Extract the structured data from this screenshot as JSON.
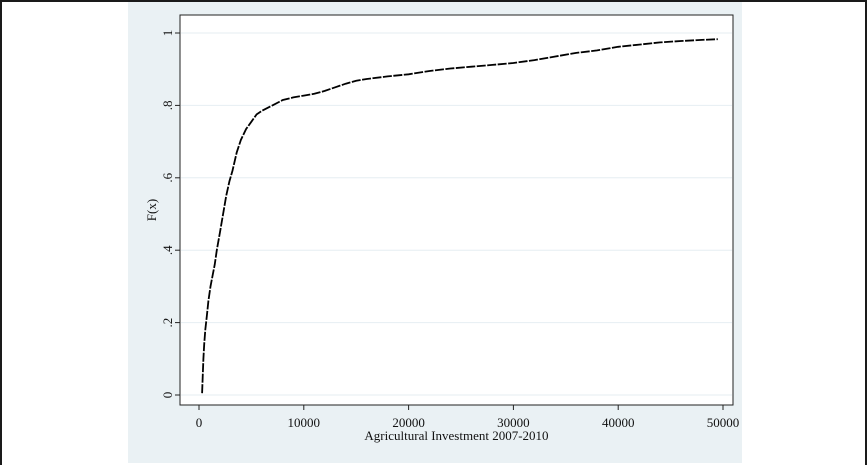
{
  "chart_data": {
    "type": "line",
    "title": "",
    "xlabel": "Agricultural Investment 2007-2010",
    "ylabel": "F(x)",
    "xlim": [
      0,
      50000
    ],
    "ylim": [
      0,
      1
    ],
    "x_ticks": [
      0,
      10000,
      20000,
      30000,
      40000,
      50000
    ],
    "x_tick_labels": [
      "0",
      "10000",
      "20000",
      "30000",
      "40000",
      "50000"
    ],
    "y_ticks": [
      0,
      0.2,
      0.4,
      0.6,
      0.8,
      1
    ],
    "y_tick_labels": [
      "0",
      ".2",
      ".4",
      ".6",
      ".8",
      "1"
    ],
    "grid": true,
    "legend": "none",
    "line_color": "#000000",
    "line_style": "dashed",
    "series": [
      {
        "x": [
          300,
          350,
          420,
          500,
          600,
          750,
          900,
          1100,
          1300,
          1500,
          1700,
          2000,
          2300,
          2600,
          2900,
          3200,
          3600,
          4000,
          4500,
          5000,
          5500,
          6000,
          7000,
          8000,
          9000,
          10000,
          11000,
          12000,
          13000,
          14000,
          15000,
          16000,
          18000,
          20000,
          22000,
          24000,
          26000,
          28000,
          30000,
          32000,
          34000,
          36000,
          38000,
          40000,
          42000,
          44000,
          46000,
          48000,
          49500
        ],
        "y": [
          0.005,
          0.05,
          0.1,
          0.14,
          0.18,
          0.22,
          0.26,
          0.3,
          0.33,
          0.36,
          0.4,
          0.45,
          0.5,
          0.55,
          0.59,
          0.62,
          0.67,
          0.705,
          0.735,
          0.755,
          0.775,
          0.785,
          0.8,
          0.815,
          0.822,
          0.827,
          0.832,
          0.84,
          0.85,
          0.86,
          0.868,
          0.873,
          0.88,
          0.886,
          0.895,
          0.902,
          0.907,
          0.912,
          0.917,
          0.925,
          0.935,
          0.945,
          0.952,
          0.962,
          0.968,
          0.974,
          0.978,
          0.981,
          0.983
        ]
      }
    ]
  }
}
